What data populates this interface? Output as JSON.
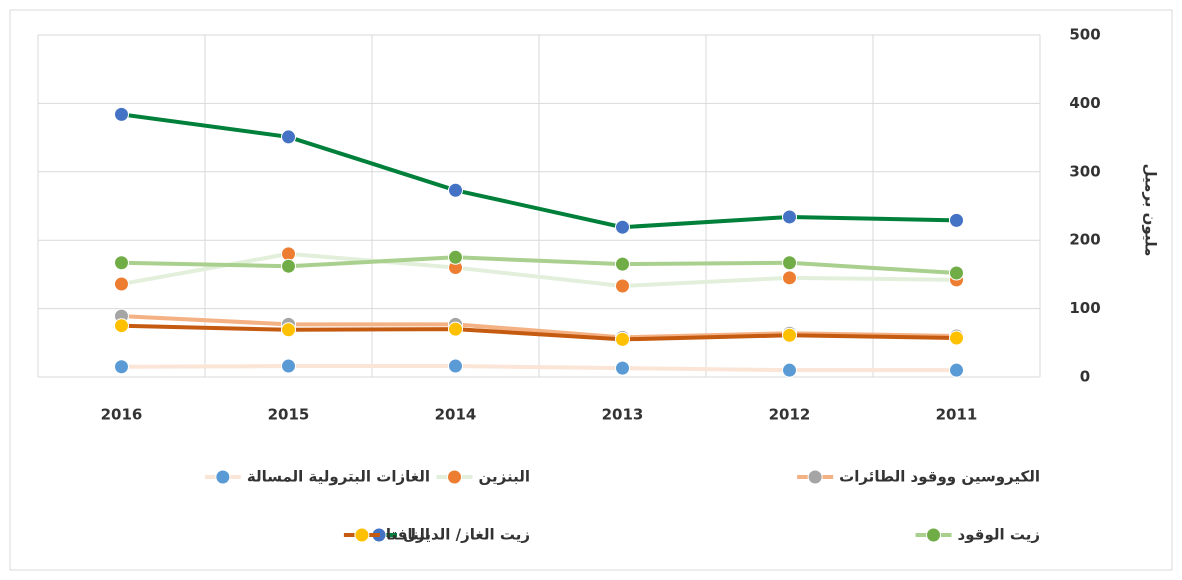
{
  "chart_data": {
    "type": "line",
    "y_label": "مليون برميل",
    "categories": [
      "2016",
      "2015",
      "2014",
      "2013",
      "2012",
      "2011"
    ],
    "ylim": [
      0,
      500
    ],
    "yticks": [
      0,
      100,
      200,
      300,
      400,
      500
    ],
    "grid": true,
    "series": [
      {
        "name": "الكيروسين ووقود الطائرات",
        "color": "#f4b183",
        "marker_color": "#a5a5a5",
        "values": [
          89,
          77,
          77,
          58,
          64,
          60
        ]
      },
      {
        "name": "البنزين",
        "color": "#e2efda",
        "marker_color": "#ed7d31",
        "values": [
          136,
          180,
          160,
          133,
          145,
          142
        ]
      },
      {
        "name": "الغازات البترولية المسالة",
        "color": "#fbe5d6",
        "marker_color": "#5b9bd5",
        "values": [
          15,
          16,
          16,
          13,
          10,
          10
        ]
      },
      {
        "name": "زيت الوقود",
        "color": "#a9d08e",
        "marker_color": "#70ad47",
        "values": [
          167,
          162,
          175,
          165,
          167,
          152
        ]
      },
      {
        "name": "زيت الغاز/ الديزل",
        "color": "#00803a",
        "marker_color": "#4472c4",
        "values": [
          384,
          351,
          273,
          219,
          234,
          229
        ]
      },
      {
        "name": "النافتا",
        "color": "#c55a11",
        "marker_color": "#ffc000",
        "values": [
          75,
          69,
          70,
          55,
          61,
          57
        ]
      }
    ]
  }
}
